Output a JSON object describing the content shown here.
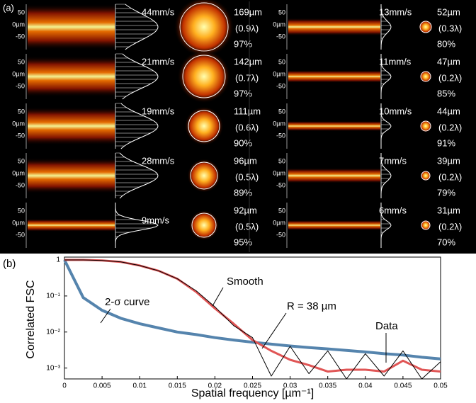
{
  "panel_a": {
    "label": "(a)",
    "y_labels": [
      "50",
      "0µm",
      "-50"
    ],
    "columns": [
      [
        {
          "speed": "44mm/s",
          "size": "169µm",
          "lambda": "(0.9λ)",
          "percent": "97%"
        },
        {
          "speed": "21mm/s",
          "size": "142µm",
          "lambda": "(0.7λ)",
          "percent": "97%"
        },
        {
          "speed": "19mm/s",
          "size": "111µm",
          "lambda": "(0.6λ)",
          "percent": "90%"
        },
        {
          "speed": "28mm/s",
          "size": "96µm",
          "lambda": "(0.5λ)",
          "percent": "89%"
        },
        {
          "speed": "9mm/s",
          "size": "92µm",
          "lambda": "(0.5λ)",
          "percent": "95%"
        }
      ],
      [
        {
          "speed": "13mm/s",
          "size": "52µm",
          "lambda": "(0.3λ)",
          "percent": "80%"
        },
        {
          "speed": "11mm/s",
          "size": "47µm",
          "lambda": "(0.2λ)",
          "percent": "85%"
        },
        {
          "speed": "10mm/s",
          "size": "44µm",
          "lambda": "(0.2λ)",
          "percent": "91%"
        },
        {
          "speed": "7mm/s",
          "size": "39µm",
          "lambda": "(0.2λ)",
          "percent": "79%"
        },
        {
          "speed": "6mm/s",
          "size": "31µm",
          "lambda": "(0.2λ)",
          "percent": "70%"
        }
      ]
    ]
  },
  "chart_data": {
    "type": "line",
    "panel_label": "(b)",
    "xlabel": "Spatial frequency [µm⁻¹]",
    "ylabel": "Correlated FSC",
    "log_y": true,
    "x": [
      0,
      0.0025,
      0.005,
      0.0075,
      0.01,
      0.0125,
      0.015,
      0.0175,
      0.02,
      0.0225,
      0.025,
      0.0275,
      0.03,
      0.0325,
      0.035,
      0.0375,
      0.04,
      0.0425,
      0.045,
      0.0475,
      0.05
    ],
    "xlim": [
      0,
      0.05
    ],
    "xticks": [
      0,
      0.005,
      0.01,
      0.015,
      0.02,
      0.025,
      0.03,
      0.035,
      0.04,
      0.045,
      0.05
    ],
    "ylim": [
      0.0005,
      1
    ],
    "yticks": [
      1,
      {
        "value": 0.1,
        "label": "10⁻¹"
      },
      {
        "value": 0.01,
        "label": "10⁻²"
      },
      {
        "value": 0.001,
        "label": "10⁻³"
      }
    ],
    "series": [
      {
        "name": "2-σ curve",
        "color": "#5584ad",
        "width": 4,
        "values": [
          1,
          0.09,
          0.04,
          0.024,
          0.017,
          0.013,
          0.01,
          0.0085,
          0.007,
          0.006,
          0.0052,
          0.0046,
          0.0041,
          0.0037,
          0.0034,
          0.0031,
          0.0028,
          0.0025,
          0.0023,
          0.002,
          0.0018
        ]
      },
      {
        "name": "Smooth",
        "color": "#e05555",
        "width": 3,
        "values": [
          1,
          1,
          0.97,
          0.88,
          0.7,
          0.5,
          0.3,
          0.13,
          0.045,
          0.017,
          0.006,
          0.003,
          0.0017,
          0.0012,
          0.0008,
          0.0009,
          0.0009,
          0.0008,
          0.0016,
          0.0009,
          0.0008
        ]
      },
      {
        "name": "Data",
        "color": "#000000",
        "width": 1,
        "values": [
          1,
          1,
          0.97,
          0.88,
          0.7,
          0.5,
          0.3,
          0.14,
          0.05,
          0.015,
          0.007,
          0.0006,
          0.004,
          0.0007,
          0.003,
          0.0005,
          0.0025,
          0.0006,
          0.003,
          0.0005,
          0.0015
        ]
      }
    ],
    "annotations": [
      "R = 38 µm"
    ]
  }
}
